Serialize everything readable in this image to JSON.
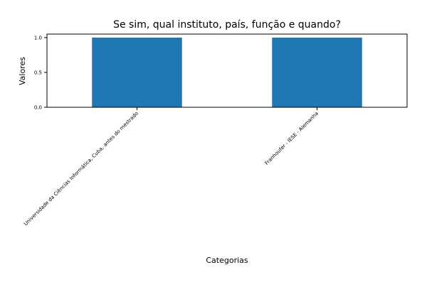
{
  "chart_data": {
    "type": "bar",
    "title": "Se sim, qual instituto, país, função e quando?",
    "xlabel": "Categorias",
    "ylabel": "Valores",
    "categories": [
      "Universidade da Ciências Informática, Cuba, antes do mestrado",
      "Franhoufer - IESE - Alemanha"
    ],
    "values": [
      1,
      1
    ],
    "ylim": [
      0,
      1.05
    ],
    "yticks": [
      0.0,
      0.5,
      1.0
    ],
    "ytick_labels": [
      "0.0",
      "0.5",
      "1.0"
    ],
    "grid": false,
    "legend": "none",
    "bar_color": "#1f77b4"
  }
}
